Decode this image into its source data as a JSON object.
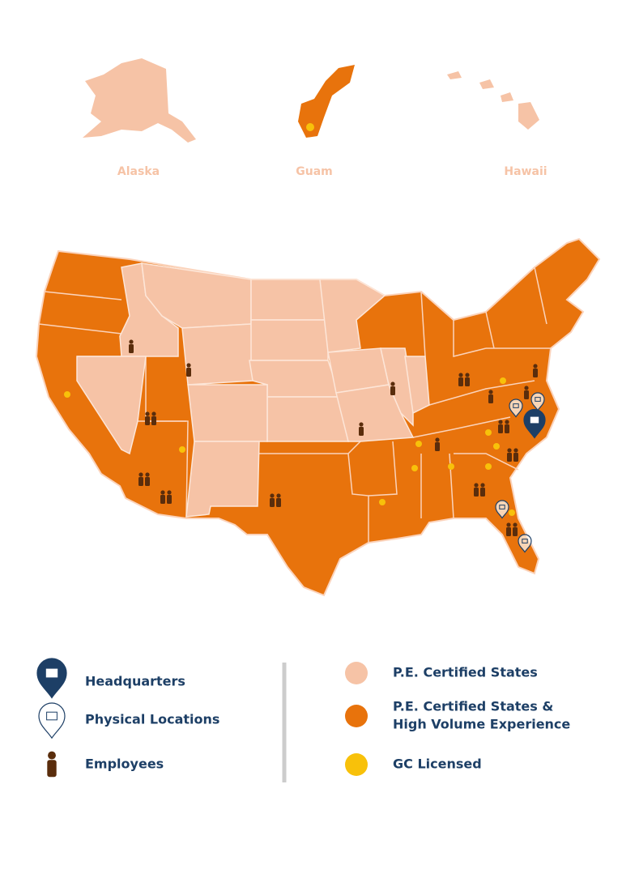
{
  "insets": [
    {
      "label": "Alaska"
    },
    {
      "label": "Guam"
    },
    {
      "label": "Hawaii"
    }
  ],
  "legend": {
    "markers": [
      {
        "label": "Headquarters"
      },
      {
        "label": "Physical Locations"
      },
      {
        "label": "Employees"
      }
    ],
    "fills": [
      {
        "label_lines": [
          "P.E. Certified States"
        ],
        "color": "#f6c3a6"
      },
      {
        "label_lines": [
          "P.E. Certified States &",
          "High Volume Experience"
        ],
        "color": "#e8730c"
      },
      {
        "label_lines": [
          "GC Licensed"
        ],
        "color": "#f8c10a"
      }
    ]
  }
}
